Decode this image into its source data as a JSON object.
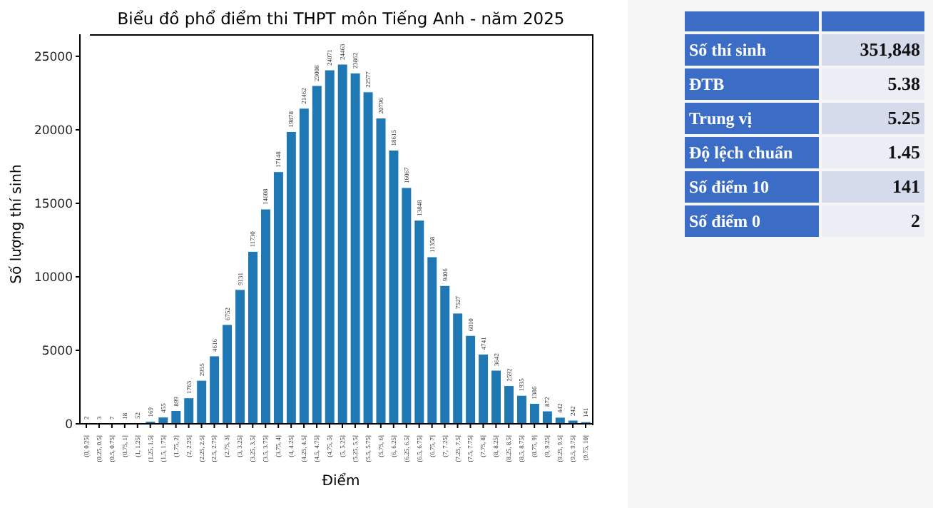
{
  "chart_data": [
    {
      "type": "bar",
      "title": "Biểu đồ phổ điểm thi THPT môn Tiếng Anh - năm 2025",
      "xlabel": "Điểm",
      "ylabel": "Số lượng thí sinh",
      "categories": [
        "(0, 0.25]",
        "(0.25, 0.5]",
        "(0.5, 0.75]",
        "(0.75, 1]",
        "(1, 1.25]",
        "(1.25, 1.5]",
        "(1.5, 1.75]",
        "(1.75, 2]",
        "(2, 2.25]",
        "(2.25, 2.5]",
        "(2.5, 2.75]",
        "(2.75, 3]",
        "(3, 3.25]",
        "(3.25, 3.5]",
        "(3.5, 3.75]",
        "(3.75, 4]",
        "(4, 4.25]",
        "(4.25, 4.5]",
        "(4.5, 4.75]",
        "(4.75, 5]",
        "(5, 5.25]",
        "(5.25, 5.5]",
        "(5.5, 5.75]",
        "(5.75, 6]",
        "(6, 6.25]",
        "(6.25, 6.5]",
        "(6.5, 6.75]",
        "(6.75, 7]",
        "(7, 7.25]",
        "(7.25, 7.5]",
        "(7.5, 7.75]",
        "(7.75, 8]",
        "(8, 8.25]",
        "(8.25, 8.5]",
        "(8.5, 8.75]",
        "(8.75, 9]",
        "(9, 9.25]",
        "(9.25, 9.5]",
        "(9.5, 9.75]",
        "(9.75, 10]"
      ],
      "values": [
        2,
        3,
        7,
        18,
        52,
        169,
        455,
        899,
        1763,
        2955,
        4616,
        6752,
        9131,
        11730,
        14608,
        17148,
        19878,
        21462,
        23008,
        24071,
        24463,
        23862,
        22577,
        20796,
        18615,
        16067,
        13848,
        11358,
        9406,
        7527,
        6010,
        4741,
        3642,
        2592,
        1935,
        1386,
        872,
        442,
        242,
        141
      ],
      "color": "#1f77b4",
      "ylim": [
        0,
        26500
      ],
      "yticks": [
        0,
        5000,
        10000,
        15000,
        20000,
        25000
      ],
      "data_labels": true
    },
    {
      "type": "other",
      "categories": [
        "Số thí sinh",
        "ĐTB",
        "Trung vị",
        "Độ lệch chuẩn",
        "Số điểm 10",
        "Số điểm 0"
      ],
      "value_labels": [
        "351,848",
        "5.38",
        "5.25",
        "1.45",
        "141",
        "2"
      ]
    }
  ]
}
